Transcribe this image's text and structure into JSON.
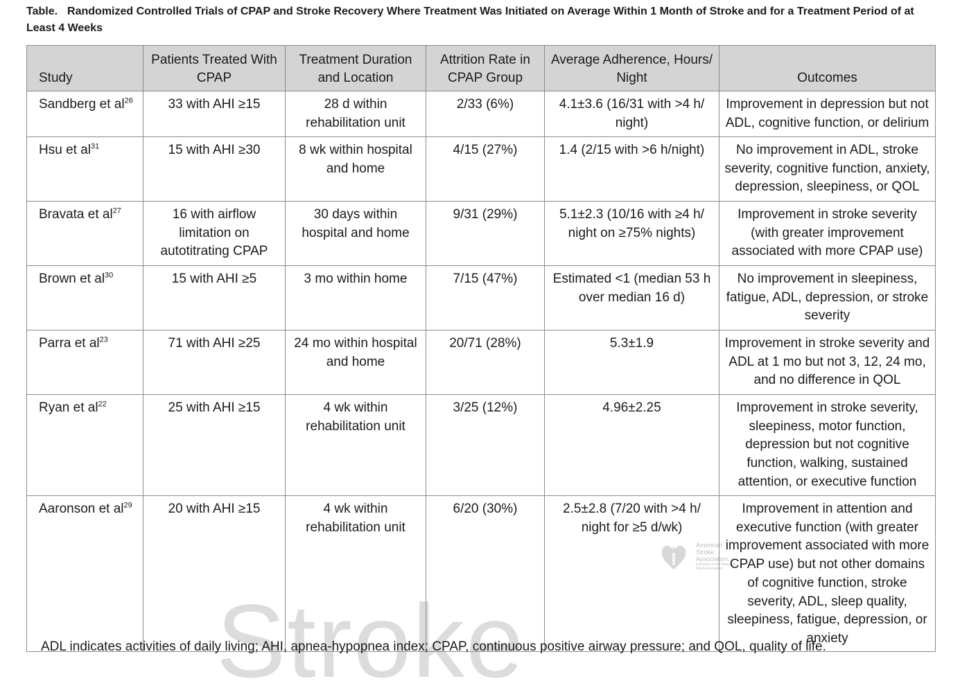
{
  "title": {
    "label": "Table.",
    "text": "Randomized Controlled Trials of CPAP and Stroke Recovery Where Treatment Was Initiated on Average Within 1 Month of Stroke and for a Treatment Period of at Least 4 Weeks"
  },
  "headers": {
    "study": "Study",
    "patients": "Patients Treated With CPAP",
    "duration": "Treatment Duration and Location",
    "attrition": "Attrition Rate in CPAP Group",
    "adherence": "Average Adherence, Hours/ Night",
    "outcomes": "Outcomes"
  },
  "rows": [
    {
      "study": "Sandberg et al",
      "ref": "26",
      "patients": "33 with AHI ≥15",
      "duration": "28 d within rehabilitation unit",
      "attrition": "2/33 (6%)",
      "adherence": "4.1±3.6 (16/31 with >4 h/ night)",
      "outcomes": "Improvement in depression but not ADL, cognitive function, or delirium"
    },
    {
      "study": "Hsu et al",
      "ref": "31",
      "patients": "15 with AHI ≥30",
      "duration": "8 wk within hospital and home",
      "attrition": "4/15 (27%)",
      "adherence": "1.4 (2/15 with >6 h/night)",
      "outcomes": "No improvement in ADL, stroke severity, cognitive function, anxiety, depression, sleepiness, or QOL"
    },
    {
      "study": "Bravata et al",
      "ref": "27",
      "patients": "16 with airflow limitation on autotitrating CPAP",
      "duration": "30 days within hospital and home",
      "attrition": "9/31 (29%)",
      "adherence": "5.1±2.3 (10/16 with ≥4 h/ night on ≥75% nights)",
      "outcomes": "Improvement in stroke severity (with greater improvement associated with more CPAP use)"
    },
    {
      "study": "Brown et al",
      "ref": "30",
      "patients": "15 with AHI ≥5",
      "duration": "3 mo within home",
      "attrition": "7/15 (47%)",
      "adherence": "Estimated <1 (median 53 h over median 16 d)",
      "outcomes": "No improvement in sleepiness, fatigue, ADL, depression, or stroke severity"
    },
    {
      "study": "Parra et al",
      "ref": "23",
      "patients": "71 with AHI ≥25",
      "duration": "24 mo within hospital and home",
      "attrition": "20/71 (28%)",
      "adherence": "5.3±1.9",
      "outcomes": "Improvement in stroke severity and ADL at 1 mo but not 3, 12, 24 mo, and no difference in QOL"
    },
    {
      "study": "Ryan et al",
      "ref": "22",
      "patients": "25 with AHI ≥15",
      "duration": "4 wk within rehabilitation unit",
      "attrition": "3/25 (12%)",
      "adherence": "4.96±2.25",
      "outcomes": "Improvement in stroke severity, sleepiness, motor function, depression but not cognitive function, walking, sustained attention, or executive function"
    },
    {
      "study": "Aaronson et al",
      "ref": "29",
      "patients": "20 with AHI ≥15",
      "duration": "4 wk within rehabilitation unit",
      "attrition": "6/20 (30%)",
      "adherence": "2.5±2.8 (7/20 with >4 h/ night for ≥5 d/wk)",
      "outcomes": "Improvement in attention and executive function (with greater improvement associated with more CPAP use) but not other domains of cognitive function, stroke severity, ADL, sleep quality, sleepiness, fatigue, depression, or anxiety"
    }
  ],
  "footnote": "ADL indicates activities of daily living; AHI, apnea-hypopnea index; CPAP, continuous positive airway pressure; and QOL, quality of life.",
  "watermark": "Stroke",
  "logo": {
    "line1": "American",
    "line2": "Stroke",
    "line3": "Association.",
    "tagline": "A division of the American Heart Association"
  },
  "colors": {
    "header_bg": "#d4d4d4",
    "border": "#8a8a8a",
    "logo_red": "#c8102e"
  }
}
